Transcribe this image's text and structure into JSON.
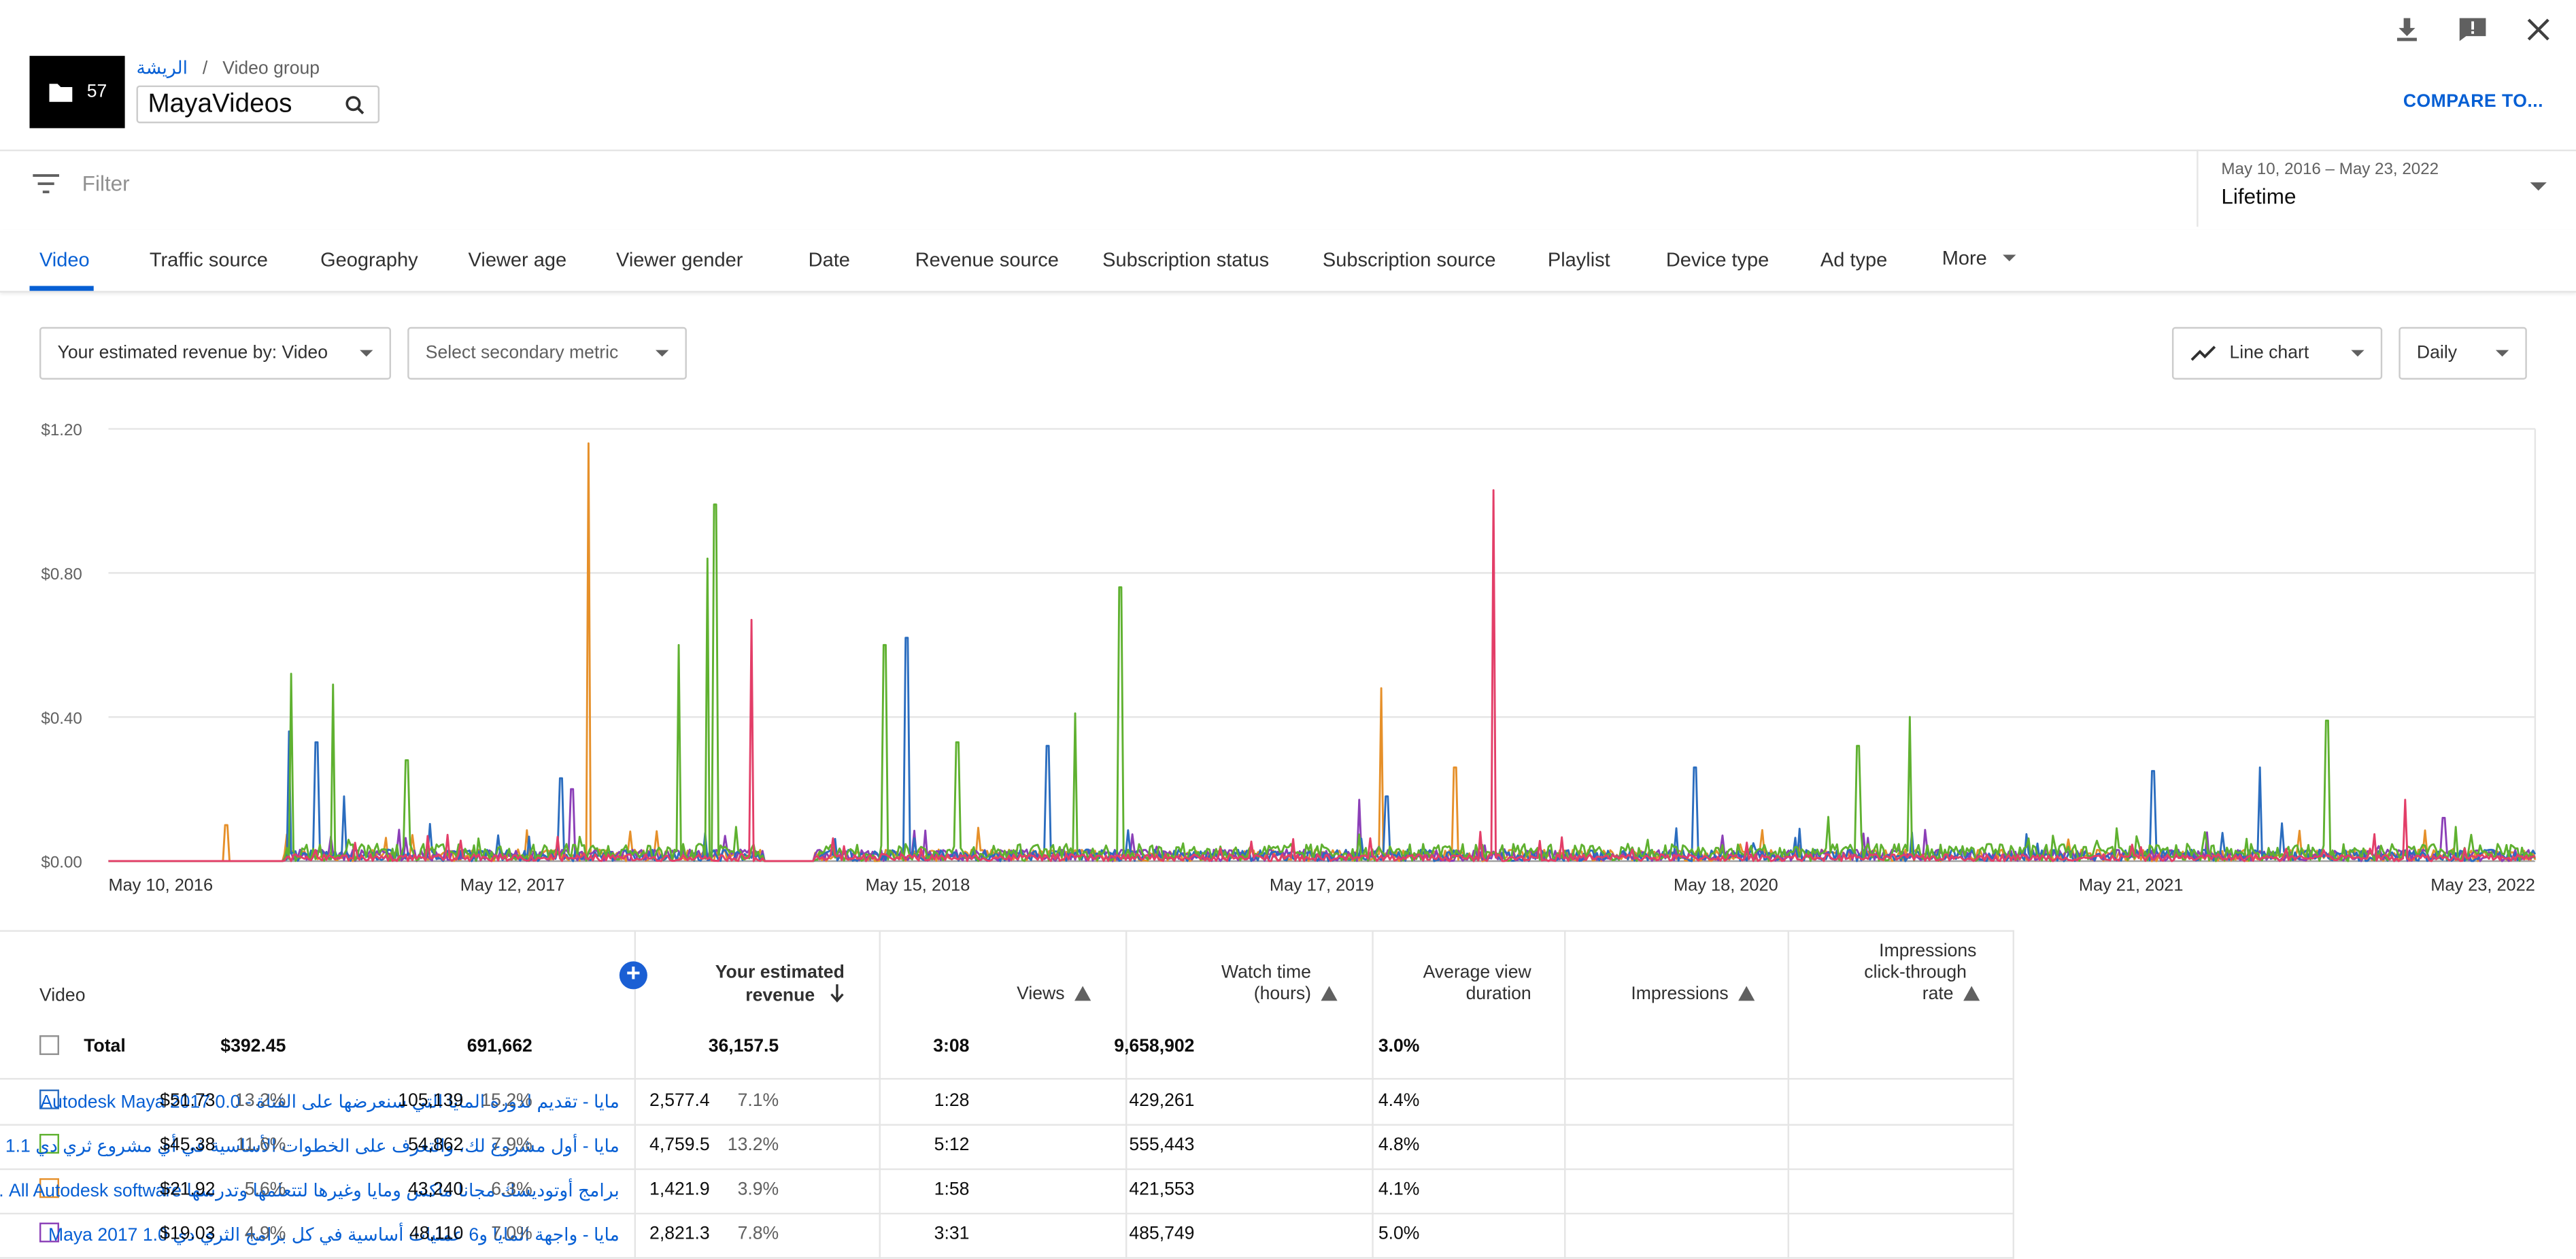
{
  "header": {
    "thumb_count": "57",
    "breadcrumb_link": "الريشة",
    "breadcrumb_sep": "/",
    "breadcrumb_current": "Video group",
    "group_name": "MayaVideos",
    "compare_label": "COMPARE TO..."
  },
  "filter": {
    "placeholder": "Filter"
  },
  "date_range": {
    "range": "May 10, 2016 – May 23, 2022",
    "label": "Lifetime"
  },
  "tabs": [
    "Video",
    "Traffic source",
    "Geography",
    "Viewer age",
    "Viewer gender",
    "Date",
    "Revenue source",
    "Subscription status",
    "Subscription source",
    "Playlist",
    "Device type",
    "Ad type",
    "More"
  ],
  "controls": {
    "primary_metric": "Your estimated revenue by: Video",
    "secondary_metric": "Select secondary metric",
    "chart_type": "Line chart",
    "granularity": "Daily"
  },
  "chart_data": {
    "type": "line",
    "y_ticks": [
      "$1.20",
      "$0.80",
      "$0.40",
      "$0.00"
    ],
    "ylim": [
      0,
      1.2
    ],
    "x_ticks": [
      "May 10, 2016",
      "May 12, 2017",
      "May 15, 2018",
      "May 17, 2019",
      "May 18, 2020",
      "May 21, 2021",
      "May 23, 2022"
    ],
    "grid": true,
    "series": [
      {
        "color": "#2b6dbf",
        "spikes": [
          [
            "2016-10-21",
            0.36
          ],
          [
            "2016-11-15",
            0.33
          ],
          [
            "2016-12-10",
            0.18
          ],
          [
            "2017-06-25",
            0.23
          ],
          [
            "2018-05-05",
            0.62
          ],
          [
            "2018-09-10",
            0.32
          ],
          [
            "2019-07-15",
            0.18
          ],
          [
            "2020-04-20",
            0.26
          ],
          [
            "2021-06-10",
            0.25
          ],
          [
            "2021-09-15",
            0.26
          ]
        ]
      },
      {
        "color": "#5fb130",
        "spikes": [
          [
            "2016-10-23",
            0.52
          ],
          [
            "2016-11-30",
            0.49
          ],
          [
            "2017-02-05",
            0.28
          ],
          [
            "2017-10-10",
            0.6
          ],
          [
            "2017-11-05",
            0.84
          ],
          [
            "2017-11-12",
            0.99
          ],
          [
            "2018-04-15",
            0.6
          ],
          [
            "2018-06-20",
            0.33
          ],
          [
            "2018-10-05",
            0.41
          ],
          [
            "2018-11-15",
            0.76
          ],
          [
            "2020-09-15",
            0.32
          ],
          [
            "2020-11-01",
            0.4
          ],
          [
            "2021-11-15",
            0.39
          ]
        ]
      },
      {
        "color": "#e6902a",
        "spikes": [
          [
            "2016-08-25",
            0.1
          ],
          [
            "2017-07-20",
            1.16
          ],
          [
            "2019-07-10",
            0.48
          ],
          [
            "2019-09-15",
            0.26
          ]
        ]
      },
      {
        "color": "#8b3fb7",
        "spikes": [
          [
            "2017-07-05",
            0.2
          ],
          [
            "2019-06-20",
            0.17
          ],
          [
            "2022-03-01",
            0.12
          ]
        ]
      },
      {
        "color": "#e33e68",
        "spikes": [
          [
            "2017-12-15",
            0.67
          ],
          [
            "2019-10-20",
            1.03
          ],
          [
            "2022-01-25",
            0.17
          ]
        ]
      }
    ]
  },
  "table": {
    "headers": {
      "video": "Video",
      "revenue_1": "Your estimated",
      "revenue_2": "revenue",
      "views": "Views",
      "watch_1": "Watch time",
      "watch_2": "(hours)",
      "avd_1": "Average view",
      "avd_2": "duration",
      "impressions": "Impressions",
      "ctr_1": "Impressions",
      "ctr_2": "click-through",
      "ctr_3": "rate"
    },
    "total": {
      "label": "Total",
      "revenue": "$392.45",
      "views": "691,662",
      "watch": "36,157.5",
      "avd": "3:08",
      "impressions": "9,658,902",
      "ctr": "3.0%"
    },
    "rows": [
      {
        "color": "#2b6dbf",
        "title": "مايا - تقديم لدورة المايا التي سنعرضها على القناة - Autodesk Maya 2017 0.0",
        "revenue": "$51.73",
        "revenue_pct": "13.2%",
        "views": "105,139",
        "views_pct": "15.2%",
        "watch": "2,577.4",
        "watch_pct": "7.1%",
        "avd": "1:28",
        "impressions": "429,261",
        "ctr": "4.4%"
      },
      {
        "color": "#5fb130",
        "title": "مايا - أول مشروع لك، والتعرف على الخطوات الأساسية في أي مشروع ثري دي 1.1",
        "revenue": "$45.38",
        "revenue_pct": "11.6%",
        "views": "54,862",
        "views_pct": "7.9%",
        "watch": "4,759.5",
        "watch_pct": "13.2%",
        "avd": "5:12",
        "impressions": "555,443",
        "ctr": "4.8%"
      },
      {
        "color": "#e6902a",
        "title": "برامج أوتوديسك مجانا ماكس ومايا وغيرها لتتعلمها وتدرسها All Autodesk software ...",
        "revenue": "$21.92",
        "revenue_pct": "5.6%",
        "views": "43,240",
        "views_pct": "6.3%",
        "watch": "1,421.9",
        "watch_pct": "3.9%",
        "avd": "1:58",
        "impressions": "421,553",
        "ctr": "4.1%"
      },
      {
        "color": "#8b3fb7",
        "title": "مايا - واجهة المايا و6 عمليات أساسية في كل برامج الثري دي Maya 2017 1.0",
        "revenue": "$19.03",
        "revenue_pct": "4.9%",
        "views": "48,110",
        "views_pct": "7.0%",
        "watch": "2,821.3",
        "watch_pct": "7.8%",
        "avd": "3:31",
        "impressions": "485,749",
        "ctr": "5.0%"
      }
    ]
  }
}
